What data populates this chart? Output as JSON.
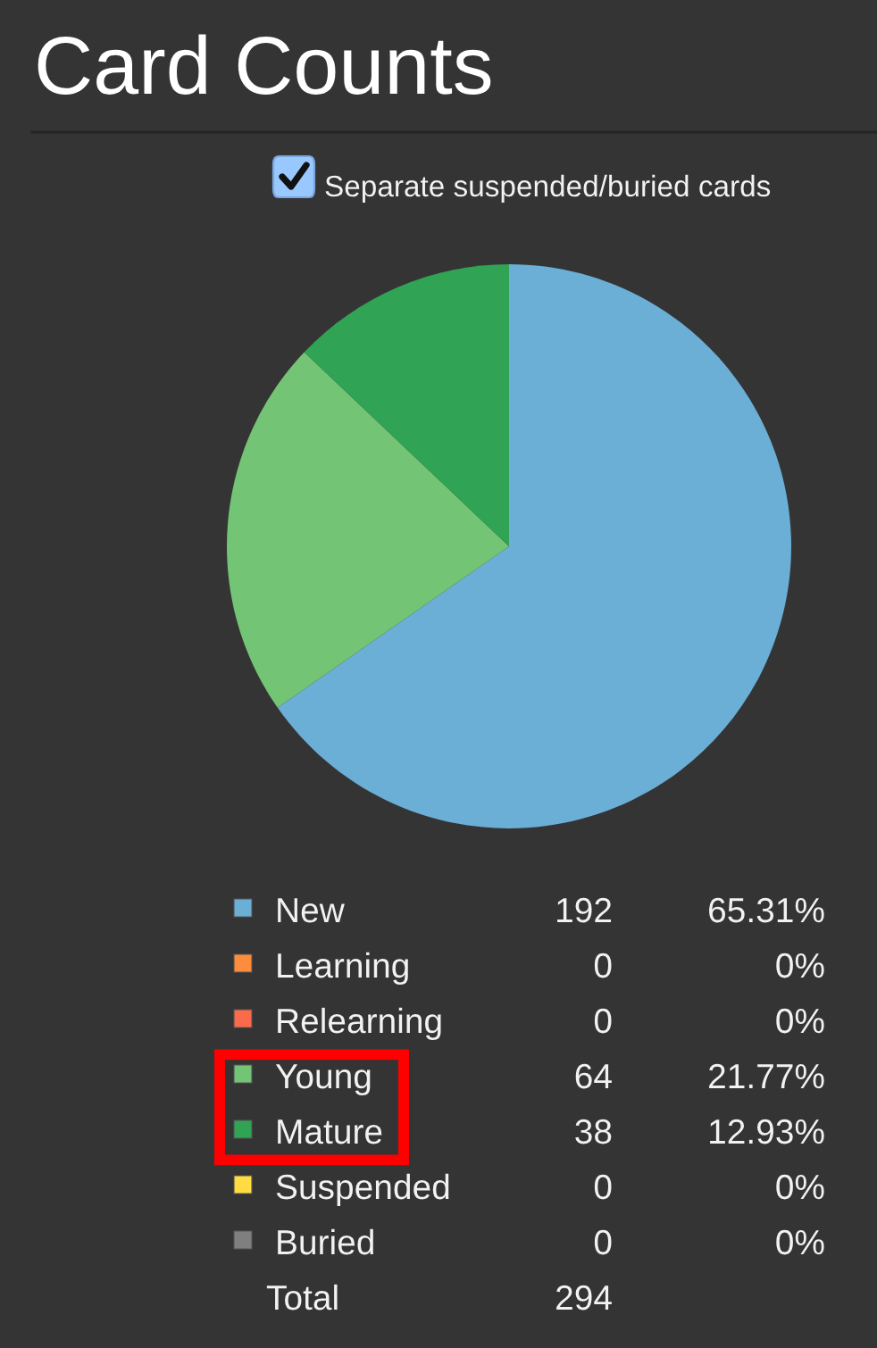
{
  "chart_data": {
    "type": "pie",
    "title": "Card Counts",
    "subtitle": "Separate suspended/buried cards",
    "categories": [
      "New",
      "Learning",
      "Relearning",
      "Young",
      "Mature",
      "Suspended",
      "Buried"
    ],
    "values": [
      192,
      0,
      0,
      64,
      38,
      0,
      0
    ],
    "value_labels": [
      "192",
      "0",
      "0",
      "64",
      "38",
      "0",
      "0"
    ],
    "colors": [
      "#6baed6",
      "#fd8d3c",
      "#fb6a4a",
      "#74c476",
      "#31a354",
      "#ffdc41",
      "#7f7f7f"
    ],
    "totals": [
      "294"
    ],
    "annotations": [
      {
        "text": "65.31%",
        "x": "New"
      },
      {
        "text": "0%",
        "x": "Learning"
      },
      {
        "text": "0%",
        "x": "Relearning"
      },
      {
        "text": "21.77%",
        "x": "Young"
      },
      {
        "text": "12.93%",
        "x": "Mature"
      },
      {
        "text": "0%",
        "x": "Suspended"
      },
      {
        "text": "0%",
        "x": "Buried"
      },
      "Total"
    ],
    "legend": "bottom"
  }
}
